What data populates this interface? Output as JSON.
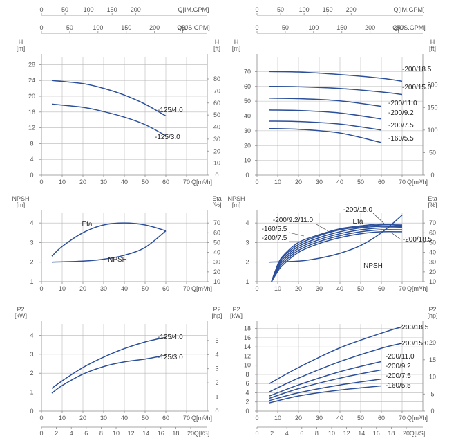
{
  "chart_data": [
    {
      "id": "h_small",
      "type": "line",
      "top_axes": [
        {
          "title": "Q[IM.GPM]",
          "ticks": [
            0,
            50,
            100,
            150,
            200
          ]
        },
        {
          "title": "Q[US.GPM]",
          "ticks": [
            0,
            50,
            100,
            150,
            200,
            250
          ]
        }
      ],
      "xlabel": "Q[m³/h]",
      "xlim": [
        0,
        80
      ],
      "xticks": [
        0,
        10,
        20,
        30,
        40,
        50,
        60,
        70
      ],
      "ylabel_left": "H",
      "ylabel_left_unit": "[m]",
      "ylim": [
        0,
        30
      ],
      "yticks": [
        0,
        4,
        8,
        12,
        16,
        20,
        24,
        28
      ],
      "ylabel_right": "H",
      "ylabel_right_unit": "[ft]",
      "yticks_right": [
        0,
        10,
        20,
        30,
        40,
        50,
        60,
        70,
        80
      ],
      "series": [
        {
          "name": "-125/4.0",
          "x": [
            5,
            20,
            30,
            40,
            50,
            60
          ],
          "y": [
            24,
            23.2,
            22,
            20.3,
            18,
            15
          ]
        },
        {
          "name": "-125/3.0",
          "x": [
            5,
            20,
            30,
            40,
            50,
            60
          ],
          "y": [
            18,
            17.2,
            16.1,
            14.7,
            12.8,
            10
          ]
        }
      ]
    },
    {
      "id": "h_large",
      "type": "line",
      "top_axes": [
        {
          "title": "Q[IM.GPM]",
          "ticks": [
            0,
            50,
            100,
            150,
            200
          ]
        },
        {
          "title": "Q[US.GPM]",
          "ticks": [
            0,
            50,
            100,
            150,
            200,
            250
          ]
        }
      ],
      "xlabel": "Q[m³/h]",
      "xlim": [
        0,
        80
      ],
      "xticks": [
        0,
        10,
        20,
        30,
        40,
        50,
        60,
        70
      ],
      "ylabel_left": "H",
      "ylabel_left_unit": "[m]",
      "ylim": [
        0,
        80
      ],
      "yticks": [
        0,
        10,
        20,
        30,
        40,
        50,
        60,
        70
      ],
      "ylabel_right": "H",
      "ylabel_right_unit": "[ft]",
      "yticks_right": [
        0,
        50,
        100,
        150,
        200
      ],
      "series": [
        {
          "name": "-200/18.5",
          "x": [
            6,
            20,
            40,
            60,
            70
          ],
          "y": [
            70,
            69.7,
            68,
            65.5,
            63.5
          ]
        },
        {
          "name": "-200/15.0",
          "x": [
            6,
            20,
            40,
            60,
            70
          ],
          "y": [
            60,
            59.8,
            58.6,
            56.2,
            54.5
          ]
        },
        {
          "name": "-200/11.0",
          "x": [
            6,
            20,
            40,
            60
          ],
          "y": [
            52,
            51.7,
            50.2,
            46.5
          ]
        },
        {
          "name": "-200/9.2",
          "x": [
            6,
            20,
            40,
            60
          ],
          "y": [
            44,
            43.7,
            42,
            38
          ]
        },
        {
          "name": "-200/7.5",
          "x": [
            6,
            20,
            40,
            60
          ],
          "y": [
            36.5,
            36.2,
            34.5,
            30.5
          ]
        },
        {
          "name": "-160/5.5",
          "x": [
            6,
            20,
            40,
            60
          ],
          "y": [
            31.5,
            31,
            28.5,
            22
          ]
        }
      ]
    },
    {
      "id": "npsh_small",
      "type": "line",
      "xlabel": "Q[m³/h]",
      "xlim": [
        0,
        80
      ],
      "xticks": [
        0,
        10,
        20,
        30,
        40,
        50,
        60,
        70
      ],
      "ylabel_left": "NPSH",
      "ylabel_left_unit": "[m]",
      "ylim": [
        1,
        4.5
      ],
      "yticks": [
        1,
        2,
        3,
        4
      ],
      "ylabel_right": "Eta",
      "ylabel_right_unit": "[%]",
      "ylim_right": [
        10,
        80
      ],
      "yticks_right": [
        10,
        20,
        30,
        40,
        50,
        60,
        70
      ],
      "series": [
        {
          "name": "Eta",
          "axis": "right",
          "x": [
            5,
            10,
            20,
            30,
            40,
            50,
            60
          ],
          "y": [
            36,
            46,
            60,
            68,
            70,
            68,
            62
          ]
        },
        {
          "name": "NPSH",
          "axis": "left",
          "x": [
            5,
            20,
            30,
            40,
            50,
            60
          ],
          "y": [
            2.0,
            2.05,
            2.15,
            2.35,
            2.75,
            3.6
          ]
        }
      ]
    },
    {
      "id": "npsh_large",
      "type": "line",
      "xlabel": "Q[m³/h]",
      "xlim": [
        0,
        80
      ],
      "xticks": [
        0,
        10,
        20,
        30,
        40,
        50,
        60,
        70
      ],
      "ylabel_left": "NPSH",
      "ylabel_left_unit": "[m]",
      "ylim": [
        1,
        4.5
      ],
      "yticks": [
        1,
        2,
        3,
        4
      ],
      "ylabel_right": "Eta",
      "ylabel_right_unit": "[%]",
      "ylim_right": [
        10,
        80
      ],
      "yticks_right": [
        10,
        20,
        30,
        40,
        50,
        60,
        70
      ],
      "eta_labels": [
        "-200/15.0",
        "Eta",
        "-200/9.2/11.0",
        "-160/5.5",
        "-200/7.5",
        "-200/18.5"
      ],
      "series": [
        {
          "name": "NPSH",
          "axis": "left",
          "x": [
            6,
            20,
            30,
            40,
            50,
            60,
            70
          ],
          "y": [
            2.0,
            2.05,
            2.2,
            2.45,
            2.85,
            3.5,
            4.4
          ]
        },
        {
          "name": "-200/15.0",
          "axis": "right",
          "x": [
            7,
            9,
            12,
            20,
            30,
            40,
            50,
            60,
            70
          ],
          "y": [
            10,
            22,
            35,
            50,
            58,
            64,
            67,
            69,
            67
          ]
        },
        {
          "name": "-200/18.5",
          "axis": "right",
          "x": [
            7,
            9,
            12,
            20,
            30,
            40,
            50,
            60,
            70
          ],
          "y": [
            10,
            21,
            34,
            48,
            57,
            63,
            66,
            68,
            68
          ]
        },
        {
          "name": "-200/11.0",
          "axis": "right",
          "x": [
            7,
            9,
            12,
            20,
            30,
            40,
            50,
            60,
            70
          ],
          "y": [
            10,
            20,
            32,
            46,
            55,
            61,
            65,
            66.5,
            66
          ]
        },
        {
          "name": "-200/9.2",
          "axis": "right",
          "x": [
            7,
            9,
            12,
            20,
            30,
            40,
            50,
            60,
            70
          ],
          "y": [
            10,
            19,
            30,
            44,
            53,
            59,
            63,
            65,
            65
          ]
        },
        {
          "name": "-200/7.5",
          "axis": "right",
          "x": [
            7,
            9,
            12,
            20,
            30,
            40,
            50,
            60,
            70
          ],
          "y": [
            10,
            18,
            28,
            42,
            51,
            57,
            61,
            63,
            63
          ]
        },
        {
          "name": "-160/5.5",
          "axis": "right",
          "x": [
            7,
            9,
            12,
            20,
            30,
            40,
            50,
            60,
            70
          ],
          "y": [
            10,
            17,
            26,
            40,
            49,
            55,
            59,
            61,
            61
          ]
        }
      ]
    },
    {
      "id": "p2_small",
      "type": "line",
      "xlabel": "Q[m³/h]",
      "xlim": [
        0,
        80
      ],
      "xticks": [
        0,
        10,
        20,
        30,
        40,
        50,
        60,
        70
      ],
      "x2label": "Q[l/S]",
      "x2ticks": [
        0,
        2,
        4,
        6,
        8,
        10,
        12,
        14,
        16,
        18,
        20
      ],
      "ylabel_left": "P2",
      "ylabel_left_unit": "[kW]",
      "ylim": [
        0,
        4.6
      ],
      "yticks": [
        0,
        1,
        2,
        3,
        4
      ],
      "ylabel_right": "P2",
      "ylabel_right_unit": "[hp]",
      "yticks_right": [
        0,
        1,
        2,
        3,
        4,
        5
      ],
      "series": [
        {
          "name": "-125/4.0",
          "x": [
            5,
            10,
            20,
            30,
            40,
            50,
            60
          ],
          "y": [
            1.2,
            1.6,
            2.3,
            2.85,
            3.3,
            3.65,
            3.9
          ]
        },
        {
          "name": "-125/3.0",
          "x": [
            5,
            10,
            20,
            30,
            40,
            50,
            60
          ],
          "y": [
            0.95,
            1.35,
            1.95,
            2.35,
            2.6,
            2.75,
            2.95
          ]
        }
      ]
    },
    {
      "id": "p2_large",
      "type": "line",
      "xlabel": "Q[m³/h]",
      "xlim": [
        0,
        80
      ],
      "xticks": [
        0,
        10,
        20,
        30,
        40,
        50,
        60,
        70
      ],
      "x2label": "Q[l/S]",
      "x2ticks": [
        0,
        2,
        4,
        6,
        8,
        10,
        12,
        14,
        16,
        18,
        20
      ],
      "ylabel_left": "P2",
      "ylabel_left_unit": "[kW]",
      "ylim": [
        0,
        19
      ],
      "yticks": [
        0,
        2,
        4,
        6,
        8,
        10,
        12,
        14,
        16,
        18
      ],
      "ylabel_right": "P2",
      "ylabel_right_unit": "[hp]",
      "yticks_right": [
        0,
        5,
        10,
        15,
        20
      ],
      "series": [
        {
          "name": "-200/18.5",
          "x": [
            6,
            20,
            40,
            60,
            70
          ],
          "y": [
            6,
            9.5,
            13.8,
            17,
            18.4
          ]
        },
        {
          "name": "-200/15.0",
          "x": [
            6,
            20,
            40,
            60,
            70
          ],
          "y": [
            4.2,
            7.2,
            10.8,
            13.7,
            14.8
          ]
        },
        {
          "name": "-200/11.0",
          "x": [
            6,
            20,
            40,
            60
          ],
          "y": [
            3.3,
            5.7,
            8.6,
            10.8
          ]
        },
        {
          "name": "-200/9.2",
          "x": [
            6,
            20,
            40,
            60
          ],
          "y": [
            2.8,
            4.9,
            7.2,
            9.0
          ]
        },
        {
          "name": "-200/7.5",
          "x": [
            6,
            20,
            40,
            60
          ],
          "y": [
            2.3,
            4.0,
            5.7,
            7.0
          ]
        },
        {
          "name": "-160/5.5",
          "x": [
            6,
            20,
            40,
            60
          ],
          "y": [
            1.8,
            3.3,
            4.6,
            5.5
          ]
        }
      ]
    }
  ]
}
